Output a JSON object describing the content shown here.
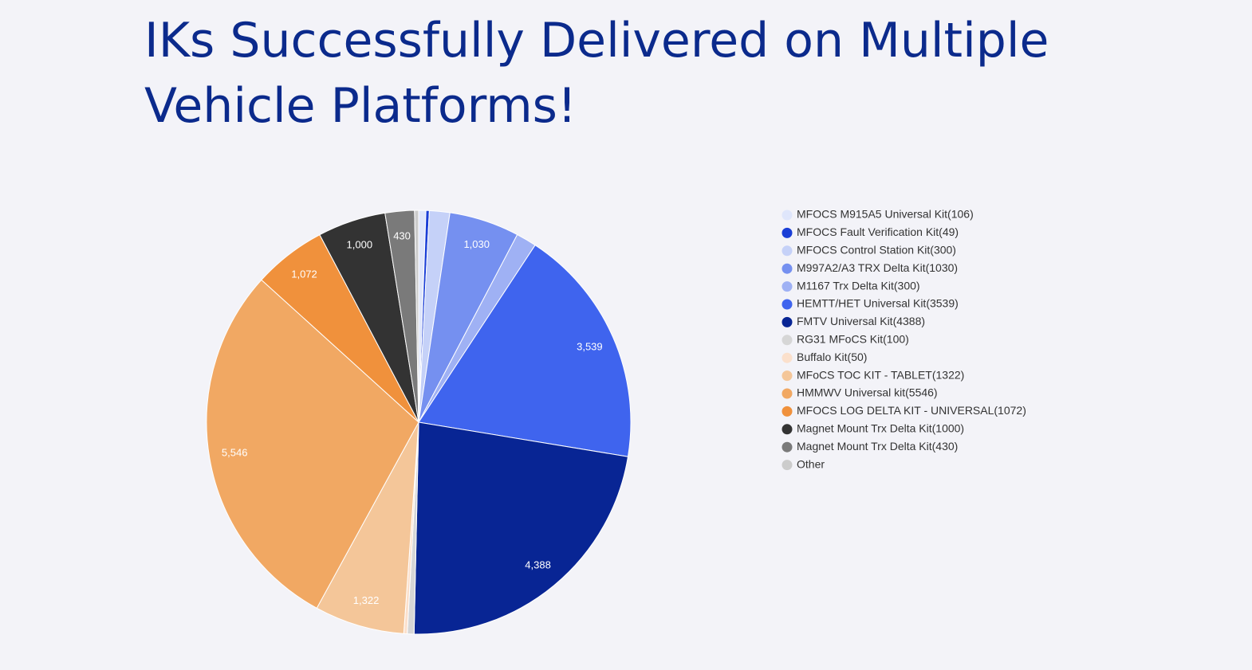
{
  "chart_data": {
    "type": "pie",
    "title": "IKs Successfully Delivered on Multiple Vehicle Platforms!",
    "categories": [
      "MFOCS M915A5 Universal Kit(106)",
      "MFOCS Fault Verification Kit(49)",
      "MFOCS Control Station Kit(300)",
      "M997A2/A3 TRX Delta Kit(1030)",
      "M1167 Trx Delta Kit(300)",
      "HEMTT/HET Universal Kit(3539)",
      "FMTV Universal Kit(4388)",
      "RG31 MFoCS Kit(100)",
      "Buffalo Kit(50)",
      "MFoCS TOC KIT - TABLET(1322)",
      "HMMWV Universal kit(5546)",
      "MFOCS LOG DELTA KIT - UNIVERSAL(1072)",
      "Magnet Mount Trx Delta Kit(1000)",
      "Magnet Mount Trx Delta Kit(430)",
      "Other"
    ],
    "values": [
      106,
      49,
      300,
      1030,
      300,
      3539,
      4388,
      100,
      50,
      1322,
      5546,
      1072,
      1000,
      430,
      60
    ],
    "value_labels": [
      null,
      null,
      null,
      "1,030",
      null,
      "3,539",
      "4,388",
      null,
      null,
      "1,322",
      "5,546",
      "1,072",
      "1,000",
      "430",
      null
    ],
    "colors": [
      "#dfe6fb",
      "#1a3ed6",
      "#c5d1f8",
      "#7590f0",
      "#9fb1f4",
      "#3f64ee",
      "#082594",
      "#d6d6d6",
      "#fbe0cc",
      "#f4c699",
      "#f1a863",
      "#f0913c",
      "#333333",
      "#7a7a7a",
      "#cccccc"
    ],
    "legend": "right"
  }
}
